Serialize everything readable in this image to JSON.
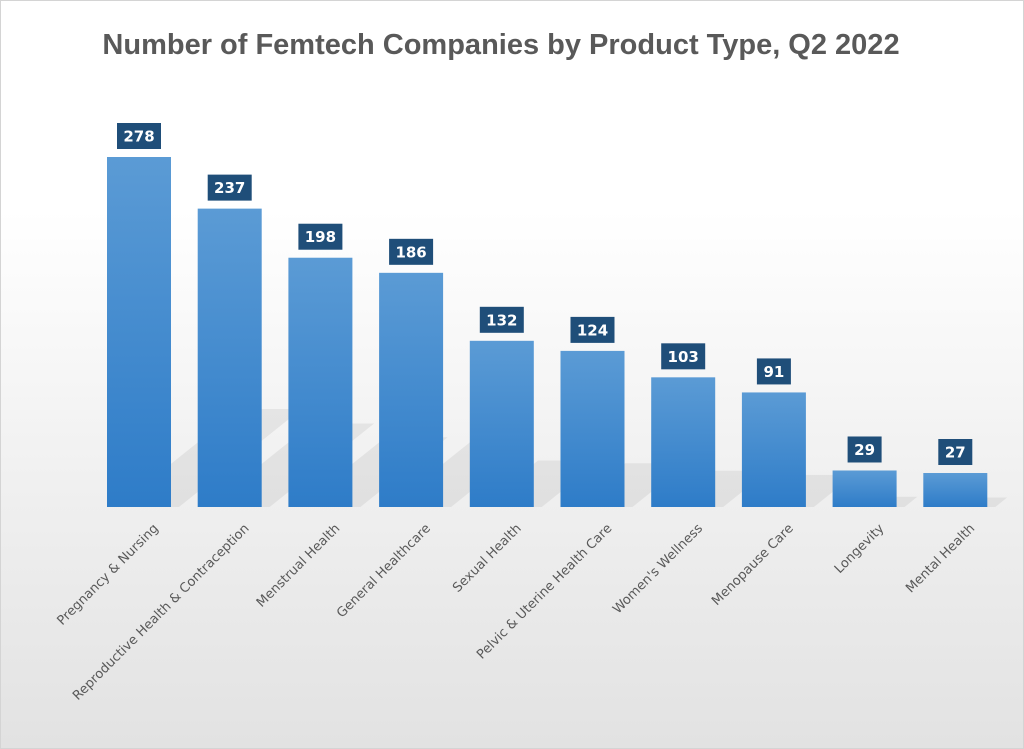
{
  "chart_data": {
    "type": "bar",
    "title": "Number of Femtech Companies by Product Type, Q2 2022",
    "categories": [
      "Pregnancy & Nursing",
      "Reproductive Health & Contraception",
      "Menstrual Health",
      "General Healthcare",
      "Sexual Health",
      "Pelvic & Uterine Health Care",
      "Women's Wellness",
      "Menopause Care",
      "Longevity",
      "Mental Health"
    ],
    "values": [
      278,
      237,
      198,
      186,
      132,
      124,
      103,
      91,
      29,
      27
    ],
    "xlabel": "",
    "ylabel": "",
    "ylim": [
      0,
      278
    ],
    "grid": false,
    "legend": "none",
    "data_labels": true,
    "colors": {
      "bar_top": "#5b9bd5",
      "bar_bottom": "#2e7cc8",
      "label_box": "#1f4e79",
      "label_text": "#ffffff",
      "title": "#595959",
      "axis_text": "#595959"
    }
  }
}
